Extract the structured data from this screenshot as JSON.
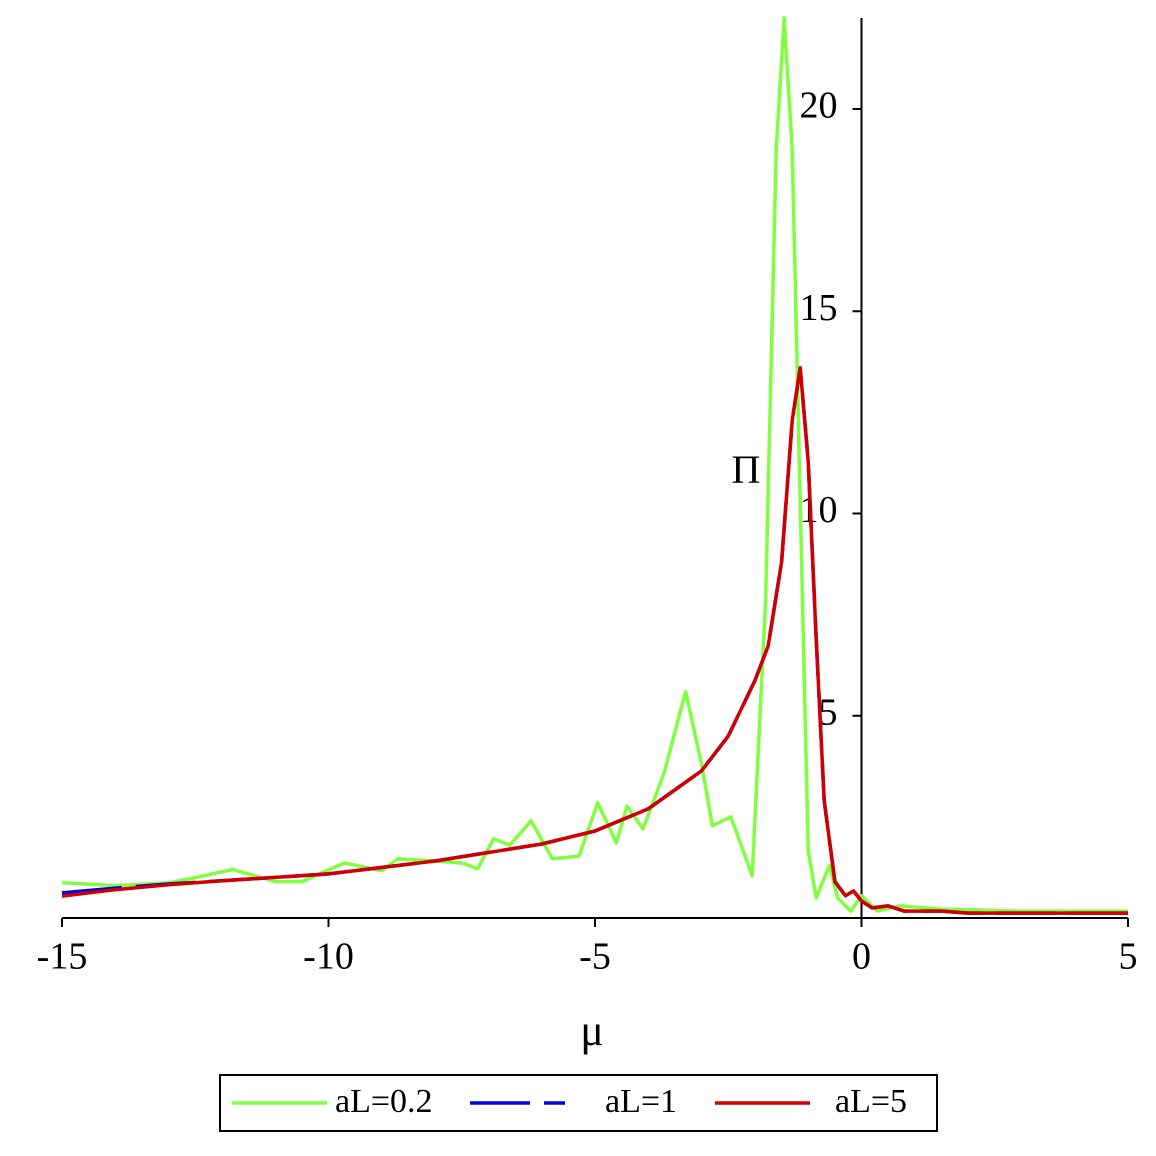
{
  "chart_data": {
    "type": "line",
    "xlabel": "μ",
    "ylabel": "Π",
    "xlim": [
      -15,
      5
    ],
    "ylim": [
      0,
      22.25
    ],
    "xticks": [
      -15,
      -10,
      -5,
      0,
      5
    ],
    "yticks": [
      5,
      10,
      15,
      20
    ],
    "legend": "bottom",
    "series": [
      {
        "name": "aL=0.2",
        "color": "#80ff40",
        "dash": "solid",
        "x": [
          -15,
          -14,
          -13,
          -12.5,
          -11.8,
          -11,
          -10.5,
          -9.7,
          -9,
          -8.7,
          -8,
          -7.5,
          -7.2,
          -6.9,
          -6.6,
          -6.2,
          -5.8,
          -5.3,
          -4.95,
          -4.6,
          -4.4,
          -4.1,
          -3.7,
          -3.3,
          -3.0,
          -2.8,
          -2.45,
          -2.05,
          -1.8,
          -1.6,
          -1.45,
          -1.3,
          -1.15,
          -1.0,
          -0.85,
          -0.6,
          -0.45,
          -0.2,
          0,
          0.3,
          0.7,
          1.5,
          3,
          5
        ],
        "values": [
          0.87,
          0.8,
          0.87,
          1.0,
          1.2,
          0.9,
          0.9,
          1.36,
          1.17,
          1.46,
          1.41,
          1.36,
          1.22,
          1.96,
          1.8,
          2.4,
          1.46,
          1.53,
          2.85,
          1.86,
          2.77,
          2.2,
          3.6,
          5.6,
          3.8,
          2.28,
          2.5,
          1.04,
          7.85,
          19,
          22.25,
          19,
          10.3,
          1.66,
          0.5,
          1.3,
          0.5,
          0.17,
          0.55,
          0.17,
          0.3,
          0.22,
          0.17,
          0.17
        ]
      },
      {
        "name": "aL=1",
        "color": "#0000e0",
        "dash": "dashed",
        "x": [
          -15,
          -14,
          -13,
          -12,
          -10,
          -8,
          -6,
          -5,
          -4,
          -3,
          -2.5,
          -2,
          -1.75,
          -1.5,
          -1.3,
          -1.15,
          -1.0,
          -0.85,
          -0.7,
          -0.5,
          -0.3,
          -0.15,
          0,
          0.2,
          0.5,
          0.8,
          1.5,
          2,
          5
        ],
        "values": [
          0.62,
          0.74,
          0.84,
          0.92,
          1.09,
          1.41,
          1.83,
          2.15,
          2.7,
          3.64,
          4.5,
          5.87,
          6.73,
          8.8,
          12.3,
          13.6,
          11.3,
          6.9,
          2.9,
          0.9,
          0.55,
          0.67,
          0.42,
          0.25,
          0.3,
          0.17,
          0.17,
          0.12,
          0.12
        ]
      },
      {
        "name": "aL=5",
        "color": "#d00000",
        "dash": "solid",
        "x": [
          -15,
          -14,
          -13,
          -12,
          -10,
          -8,
          -6,
          -5,
          -4,
          -3,
          -2.5,
          -2,
          -1.75,
          -1.5,
          -1.3,
          -1.15,
          -1.0,
          -0.85,
          -0.7,
          -0.5,
          -0.3,
          -0.15,
          0,
          0.2,
          0.5,
          0.8,
          1.5,
          2,
          5
        ],
        "values": [
          0.54,
          0.7,
          0.82,
          0.92,
          1.09,
          1.41,
          1.83,
          2.15,
          2.7,
          3.64,
          4.5,
          5.87,
          6.73,
          8.8,
          12.3,
          13.6,
          11.3,
          6.9,
          2.9,
          0.9,
          0.55,
          0.67,
          0.42,
          0.25,
          0.3,
          0.17,
          0.17,
          0.12,
          0.12
        ]
      }
    ]
  }
}
